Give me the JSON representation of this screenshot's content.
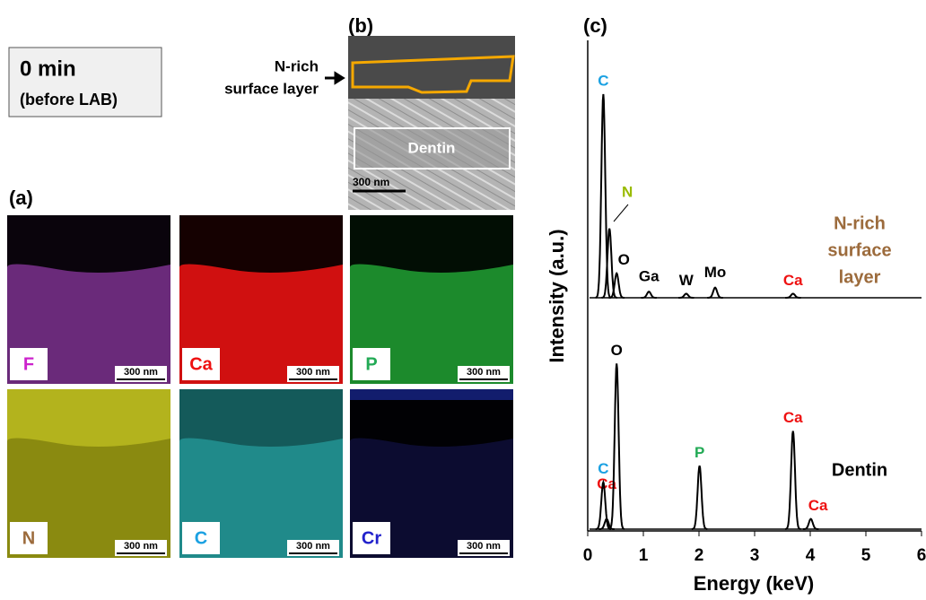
{
  "header": {
    "time": "0 min",
    "note": "(before LAB)"
  },
  "panel_b": {
    "label": "(b)",
    "arrow_label": [
      "N-rich",
      "surface layer"
    ],
    "region": "Dentin",
    "scale": "300 nm"
  },
  "panel_a": {
    "label": "(a)",
    "maps": [
      {
        "element": "F",
        "label_color": "#cc22cc",
        "tint": "#6a2a7a",
        "scale": "300 nm"
      },
      {
        "element": "Ca",
        "label_color": "#ee1111",
        "tint": "#d01010",
        "scale": "300 nm"
      },
      {
        "element": "P",
        "label_color": "#22aa55",
        "tint": "#1c8a2c",
        "scale": "300 nm"
      },
      {
        "element": "N",
        "label_color": "#9c6b3c",
        "tint": "#8a8a10",
        "scale": "300 nm"
      },
      {
        "element": "C",
        "label_color": "#1ba1e2",
        "tint": "#208a8a",
        "scale": "300 nm"
      },
      {
        "element": "Cr",
        "label_color": "#2222cc",
        "tint": "#0c0c30",
        "scale": "300 nm"
      }
    ]
  },
  "chart_data": {
    "type": "line",
    "title": "(c)",
    "xlabel": "Energy (keV)",
    "ylabel": "Intensity (a.u.)",
    "xlim": [
      0,
      6
    ],
    "xticks": [
      0,
      1,
      2,
      3,
      4,
      5,
      6
    ],
    "series": [
      {
        "name": [
          "N-rich",
          "surface",
          "layer"
        ],
        "name_color": "#9c6b3c",
        "color": "#000000",
        "x": [
          0.28,
          0.39,
          0.52,
          1.1,
          1.77,
          2.29,
          3.69
        ],
        "values": [
          100,
          34,
          12,
          3,
          2,
          5,
          2
        ],
        "labels": [
          "C",
          "N",
          "O",
          "Ga",
          "W",
          "Mo",
          "Ca"
        ],
        "label_colors": [
          "#1ba1e2",
          "#99bb00",
          "#000000",
          "#000000",
          "#000000",
          "#000000",
          "#ee1111"
        ]
      },
      {
        "name": [
          "Dentin"
        ],
        "name_color": "#000000",
        "color": "#000000",
        "x": [
          0.34,
          0.28,
          0.52,
          2.01,
          3.69,
          4.01
        ],
        "values": [
          5,
          23,
          81,
          31,
          48,
          5
        ],
        "labels": [
          "Ca",
          "C",
          "O",
          "P",
          "Ca",
          "Ca"
        ],
        "label_colors": [
          "#ee1111",
          "#1ba1e2",
          "#000000",
          "#22aa55",
          "#ee1111",
          "#ee1111"
        ]
      }
    ]
  }
}
